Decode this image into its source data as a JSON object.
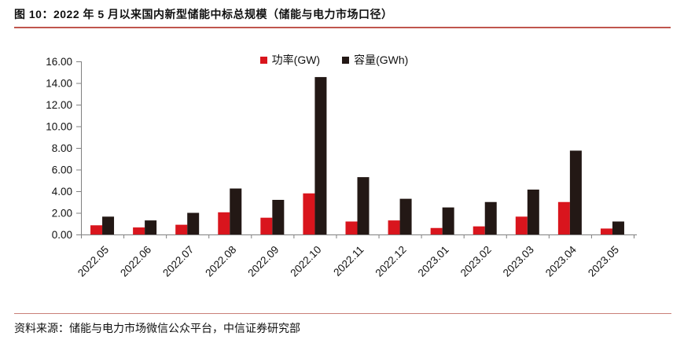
{
  "page": {
    "title": "图 10：2022 年 5 月以来国内新型储能中标总规模（储能与电力市场口径）",
    "source": "资料来源：储能与电力市场微信公众平台，中信证券研究部"
  },
  "colors": {
    "power_red": "#d9151d",
    "capacity_black": "#231815",
    "title_underline": "#c0564e",
    "source_line": "#c98078",
    "axis": "#808080",
    "text": "#111111"
  },
  "chart_data": {
    "type": "bar",
    "title": "2022 年 5 月以来国内新型储能中标总规模（储能与电力市场口径）",
    "categories": [
      "2022.05",
      "2022.06",
      "2022.07",
      "2022.08",
      "2022.09",
      "2022.10",
      "2022.11",
      "2022.12",
      "2023.01",
      "2023.02",
      "2023.03",
      "2023.04",
      "2023.05"
    ],
    "series": [
      {
        "name": "功率(GW)",
        "color": "#d9151d",
        "values": [
          0.85,
          0.65,
          0.9,
          2.05,
          1.55,
          3.8,
          1.2,
          1.3,
          0.6,
          0.75,
          1.65,
          3.0,
          0.55
        ]
      },
      {
        "name": "容量(GWh)",
        "color": "#231815",
        "values": [
          1.65,
          1.3,
          2.0,
          4.25,
          3.2,
          14.55,
          5.3,
          3.3,
          2.5,
          3.0,
          4.15,
          7.75,
          1.2
        ]
      }
    ],
    "ylim": [
      0,
      16
    ],
    "ytick_step": 2,
    "ytick_labels": [
      "0.00",
      "2.00",
      "4.00",
      "6.00",
      "8.00",
      "10.00",
      "12.00",
      "14.00",
      "16.00"
    ],
    "grid": false,
    "legend_position": "top-center",
    "xlabel": "",
    "ylabel": ""
  }
}
